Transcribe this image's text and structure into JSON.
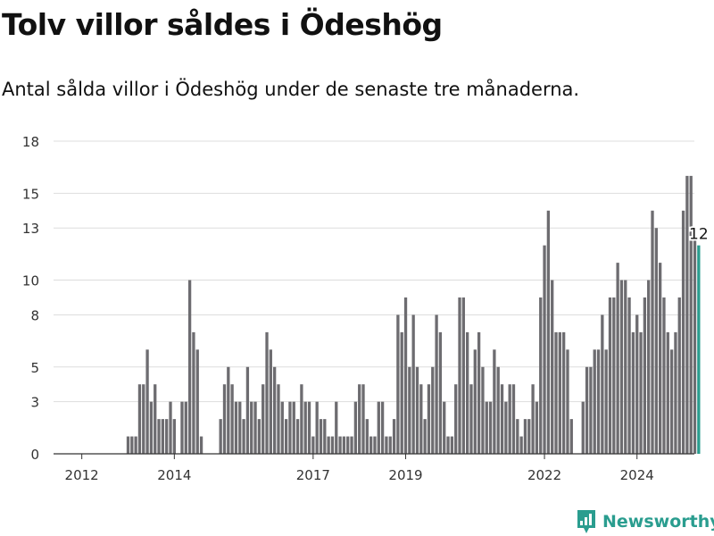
{
  "header": {
    "title": "Tolv villor såldes i Ödeshög",
    "subtitle": "Antal sålda villor i Ödeshög under de senaste tre månaderna."
  },
  "brand": {
    "name": "Newsworthy",
    "icon": "newsworthy-logo-icon",
    "color": "#2a9d8f"
  },
  "chart_data": {
    "type": "bar",
    "title": "Tolv villor såldes i Ödeshög",
    "subtitle": "Antal sålda villor i Ödeshög under de senaste tre månaderna.",
    "xlabel": "",
    "ylabel": "",
    "ylim": [
      0,
      18
    ],
    "yticks": [
      0,
      3,
      5,
      8,
      10,
      13,
      15,
      18
    ],
    "xticks": [
      "2012",
      "2014",
      "2017",
      "2019",
      "2022",
      "2024"
    ],
    "grid": true,
    "bar_color": "#6d6c70",
    "highlight_color": "#2a9d8f",
    "annotation": "12",
    "values": [
      0,
      0,
      0,
      0,
      0,
      0,
      0,
      0,
      0,
      0,
      0,
      0,
      1,
      1,
      1,
      4,
      4,
      6,
      3,
      4,
      2,
      2,
      2,
      3,
      2,
      0,
      3,
      3,
      10,
      7,
      6,
      1,
      0,
      0,
      0,
      0,
      2,
      4,
      5,
      4,
      3,
      3,
      2,
      5,
      3,
      3,
      2,
      4,
      7,
      6,
      5,
      4,
      3,
      2,
      3,
      3,
      2,
      4,
      3,
      3,
      1,
      3,
      2,
      2,
      1,
      1,
      3,
      1,
      1,
      1,
      1,
      3,
      4,
      4,
      2,
      1,
      1,
      3,
      3,
      1,
      1,
      2,
      8,
      7,
      9,
      5,
      8,
      5,
      4,
      2,
      4,
      5,
      8,
      7,
      3,
      1,
      1,
      4,
      9,
      9,
      7,
      4,
      6,
      7,
      5,
      3,
      3,
      6,
      5,
      4,
      3,
      4,
      4,
      2,
      1,
      2,
      2,
      4,
      3,
      9,
      12,
      14,
      10,
      7,
      7,
      7,
      6,
      2,
      0,
      0,
      3,
      5,
      5,
      6,
      6,
      8,
      6,
      9,
      9,
      11,
      10,
      10,
      9,
      7,
      8,
      7,
      9,
      10,
      14,
      13,
      11,
      9,
      7,
      6,
      7,
      9,
      14,
      16,
      16,
      13,
      12
    ]
  }
}
